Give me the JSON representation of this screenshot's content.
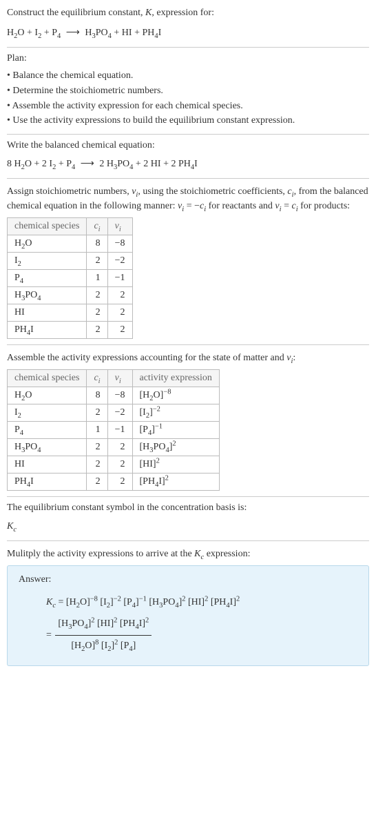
{
  "header": {
    "prompt1": "Construct the equilibrium constant, ",
    "K": "K",
    "prompt2": ", expression for:"
  },
  "eq_unbalanced": {
    "lhs": [
      {
        "base": "H",
        "sub": "2",
        "tail": "O"
      },
      {
        "base": "I",
        "sub": "2",
        "tail": ""
      },
      {
        "base": "P",
        "sub": "4",
        "tail": ""
      }
    ],
    "rhs": [
      {
        "base": "H",
        "sub": "3",
        "mid": "PO",
        "sub2": "4"
      },
      {
        "base": "HI"
      },
      {
        "base": "PH",
        "sub": "4",
        "tail": "I"
      }
    ]
  },
  "plan_heading": "Plan:",
  "plan_items": [
    "Balance the chemical equation.",
    "Determine the stoichiometric numbers.",
    "Assemble the activity expression for each chemical species.",
    "Use the activity expressions to build the equilibrium constant expression."
  ],
  "balanced_heading": "Write the balanced chemical equation:",
  "eq_balanced": {
    "lhs": [
      {
        "coef": "8",
        "base": "H",
        "sub": "2",
        "tail": "O"
      },
      {
        "coef": "2",
        "base": "I",
        "sub": "2",
        "tail": ""
      },
      {
        "coef": "",
        "base": "P",
        "sub": "4",
        "tail": ""
      }
    ],
    "rhs": [
      {
        "coef": "2",
        "base": "H",
        "sub": "3",
        "mid": "PO",
        "sub2": "4"
      },
      {
        "coef": "2",
        "base": "HI"
      },
      {
        "coef": "2",
        "base": "PH",
        "sub": "4",
        "tail": "I"
      }
    ]
  },
  "stoich_text": {
    "p1": "Assign stoichiometric numbers, ",
    "nu": "ν",
    "i": "i",
    "p2": ", using the stoichiometric coefficients, ",
    "c": "c",
    "p3": ", from the balanced chemical equation in the following manner: ",
    "eq1a": "ν",
    "eq1b": " = −",
    "eq1c": "c",
    "p4": " for reactants and ",
    "eq2a": "ν",
    "eq2b": " = ",
    "eq2c": "c",
    "p5": " for products:"
  },
  "table1": {
    "headers": {
      "sp": "chemical species",
      "c": "c",
      "ci": "i",
      "nu": "ν",
      "nui": "i"
    },
    "rows": [
      {
        "sp": {
          "a": "H",
          "s": "2",
          "b": "O"
        },
        "c": "8",
        "nu": "−8"
      },
      {
        "sp": {
          "a": "I",
          "s": "2",
          "b": ""
        },
        "c": "2",
        "nu": "−2"
      },
      {
        "sp": {
          "a": "P",
          "s": "4",
          "b": ""
        },
        "c": "1",
        "nu": "−1"
      },
      {
        "sp": {
          "a": "H",
          "s": "3",
          "b": "PO",
          "s2": "4"
        },
        "c": "2",
        "nu": "2"
      },
      {
        "sp": {
          "a": "HI"
        },
        "c": "2",
        "nu": "2"
      },
      {
        "sp": {
          "a": "PH",
          "s": "4",
          "b": "I"
        },
        "c": "2",
        "nu": "2"
      }
    ]
  },
  "activity_heading": {
    "p1": "Assemble the activity expressions accounting for the state of matter and ",
    "nu": "ν",
    "i": "i",
    "p2": ":"
  },
  "table2": {
    "headers": {
      "sp": "chemical species",
      "c": "c",
      "ci": "i",
      "nu": "ν",
      "nui": "i",
      "act": "activity expression"
    },
    "rows": [
      {
        "sp": {
          "a": "H",
          "s": "2",
          "b": "O"
        },
        "c": "8",
        "nu": "−8",
        "act": {
          "b": "H",
          "s": "2",
          "t": "O",
          "e": "−8"
        }
      },
      {
        "sp": {
          "a": "I",
          "s": "2",
          "b": ""
        },
        "c": "2",
        "nu": "−2",
        "act": {
          "b": "I",
          "s": "2",
          "t": "",
          "e": "−2"
        }
      },
      {
        "sp": {
          "a": "P",
          "s": "4",
          "b": ""
        },
        "c": "1",
        "nu": "−1",
        "act": {
          "b": "P",
          "s": "4",
          "t": "",
          "e": "−1"
        }
      },
      {
        "sp": {
          "a": "H",
          "s": "3",
          "b": "PO",
          "s2": "4"
        },
        "c": "2",
        "nu": "2",
        "act": {
          "b": "H",
          "s": "3",
          "m": "PO",
          "s2": "4",
          "e": "2"
        }
      },
      {
        "sp": {
          "a": "HI"
        },
        "c": "2",
        "nu": "2",
        "act": {
          "b": "HI",
          "e": "2"
        }
      },
      {
        "sp": {
          "a": "PH",
          "s": "4",
          "b": "I"
        },
        "c": "2",
        "nu": "2",
        "act": {
          "b": "PH",
          "s": "4",
          "t": "I",
          "e": "2"
        }
      }
    ]
  },
  "kc_symbol_text": "The equilibrium constant symbol in the concentration basis is:",
  "kc": {
    "K": "K",
    "c": "c"
  },
  "multiply_text": {
    "p1": "Mulitply the activity expressions to arrive at the ",
    "p2": " expression:"
  },
  "answer": {
    "label": "Answer:",
    "line1": {
      "Kc": {
        "K": "K",
        "c": "c"
      },
      "terms": [
        {
          "b": "H",
          "s": "2",
          "t": "O",
          "e": "−8"
        },
        {
          "b": "I",
          "s": "2",
          "t": "",
          "e": "−2"
        },
        {
          "b": "P",
          "s": "4",
          "t": "",
          "e": "−1"
        },
        {
          "b": "H",
          "s": "3",
          "m": "PO",
          "s2": "4",
          "e": "2"
        },
        {
          "b": "HI",
          "e": "2"
        },
        {
          "b": "PH",
          "s": "4",
          "t": "I",
          "e": "2"
        }
      ]
    },
    "frac": {
      "num": [
        {
          "b": "H",
          "s": "3",
          "m": "PO",
          "s2": "4",
          "e": "2"
        },
        {
          "b": "HI",
          "e": "2"
        },
        {
          "b": "PH",
          "s": "4",
          "t": "I",
          "e": "2"
        }
      ],
      "den": [
        {
          "b": "H",
          "s": "2",
          "t": "O",
          "e": "8"
        },
        {
          "b": "I",
          "s": "2",
          "t": "",
          "e": "2"
        },
        {
          "b": "P",
          "s": "4",
          "t": ""
        }
      ]
    }
  },
  "glue": {
    "plus": " + ",
    "eq": " = ",
    "arrow": "⟶"
  }
}
